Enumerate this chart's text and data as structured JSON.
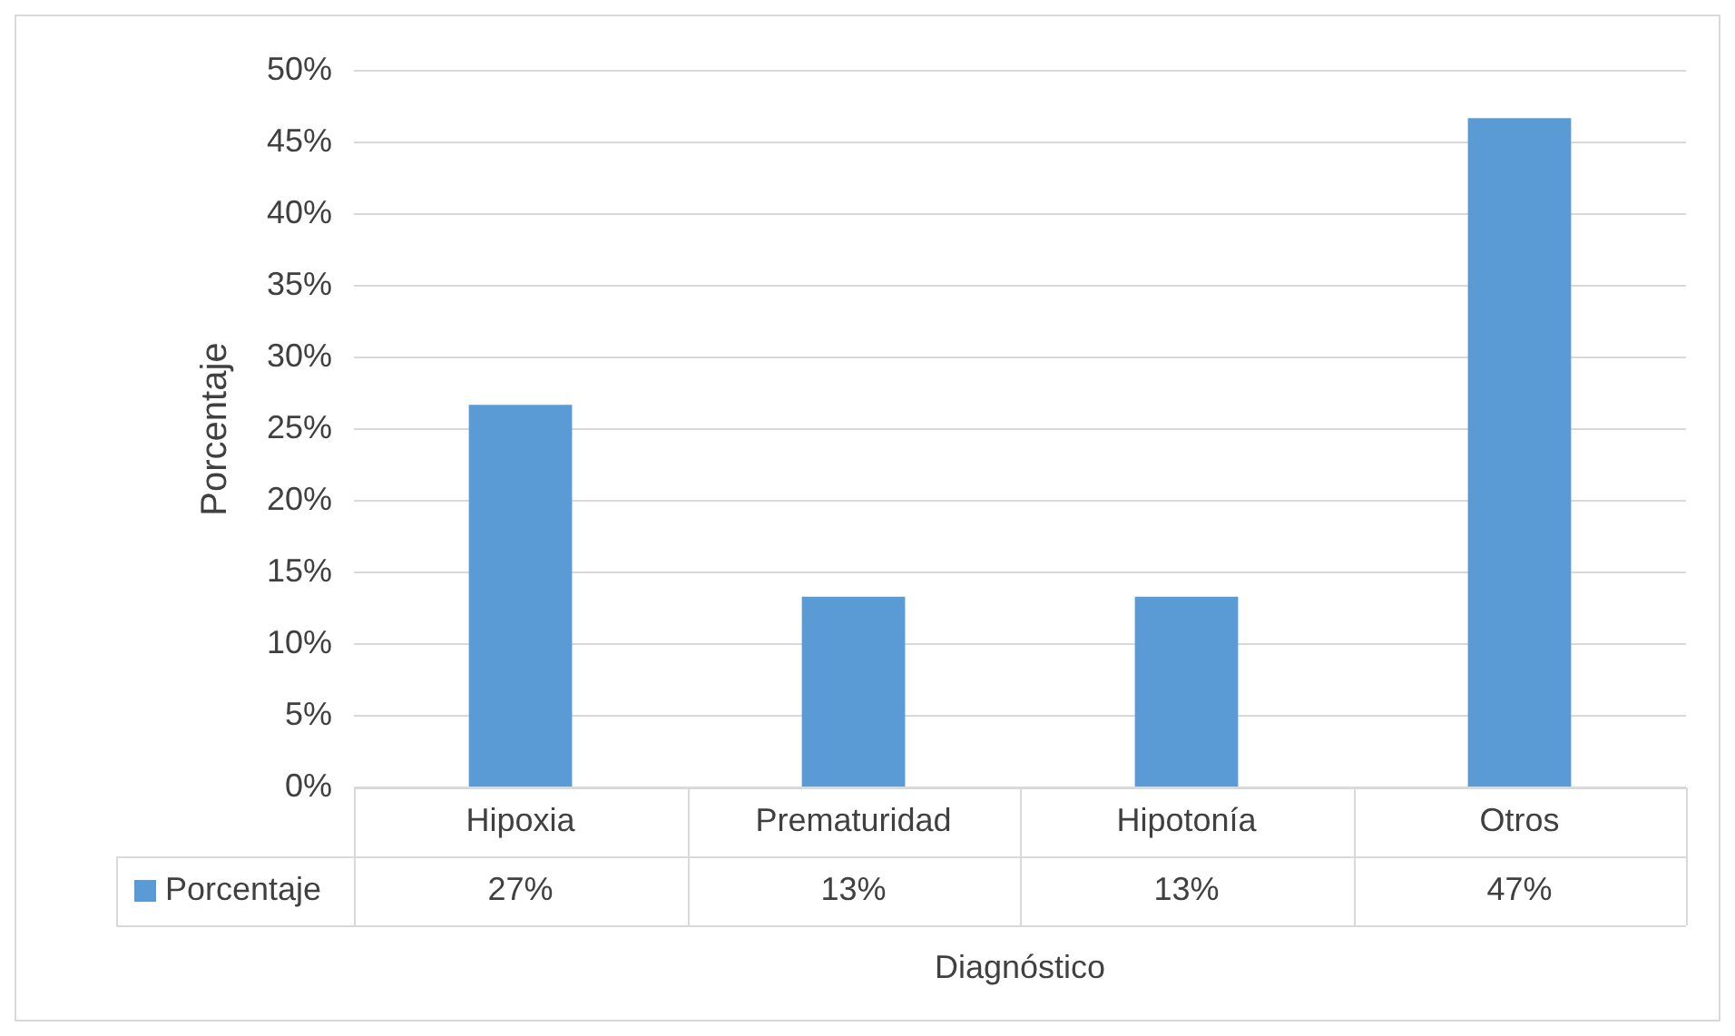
{
  "chart_data": {
    "type": "bar",
    "xlabel": "Diagnóstico",
    "ylabel": "Porcentaje",
    "categories": [
      "Hipoxia",
      "Prematuridad",
      "Hipotonía",
      "Otros"
    ],
    "series": [
      {
        "name": "Porcentaje",
        "color": "#5b9bd5",
        "values": [
          26.7,
          13.3,
          13.3,
          46.7
        ],
        "value_labels": [
          "27%",
          "13%",
          "13%",
          "47%"
        ]
      }
    ],
    "ylim": [
      0,
      50
    ],
    "yticks": [
      {
        "value": 0,
        "label": "0%"
      },
      {
        "value": 5,
        "label": "5%"
      },
      {
        "value": 10,
        "label": "10%"
      },
      {
        "value": 15,
        "label": "15%"
      },
      {
        "value": 20,
        "label": "20%"
      },
      {
        "value": 25,
        "label": "25%"
      },
      {
        "value": 30,
        "label": "30%"
      },
      {
        "value": 35,
        "label": "35%"
      },
      {
        "value": 40,
        "label": "40%"
      },
      {
        "value": 45,
        "label": "45%"
      },
      {
        "value": 50,
        "label": "50%"
      }
    ],
    "grid": "y",
    "legend": "bottom left"
  }
}
